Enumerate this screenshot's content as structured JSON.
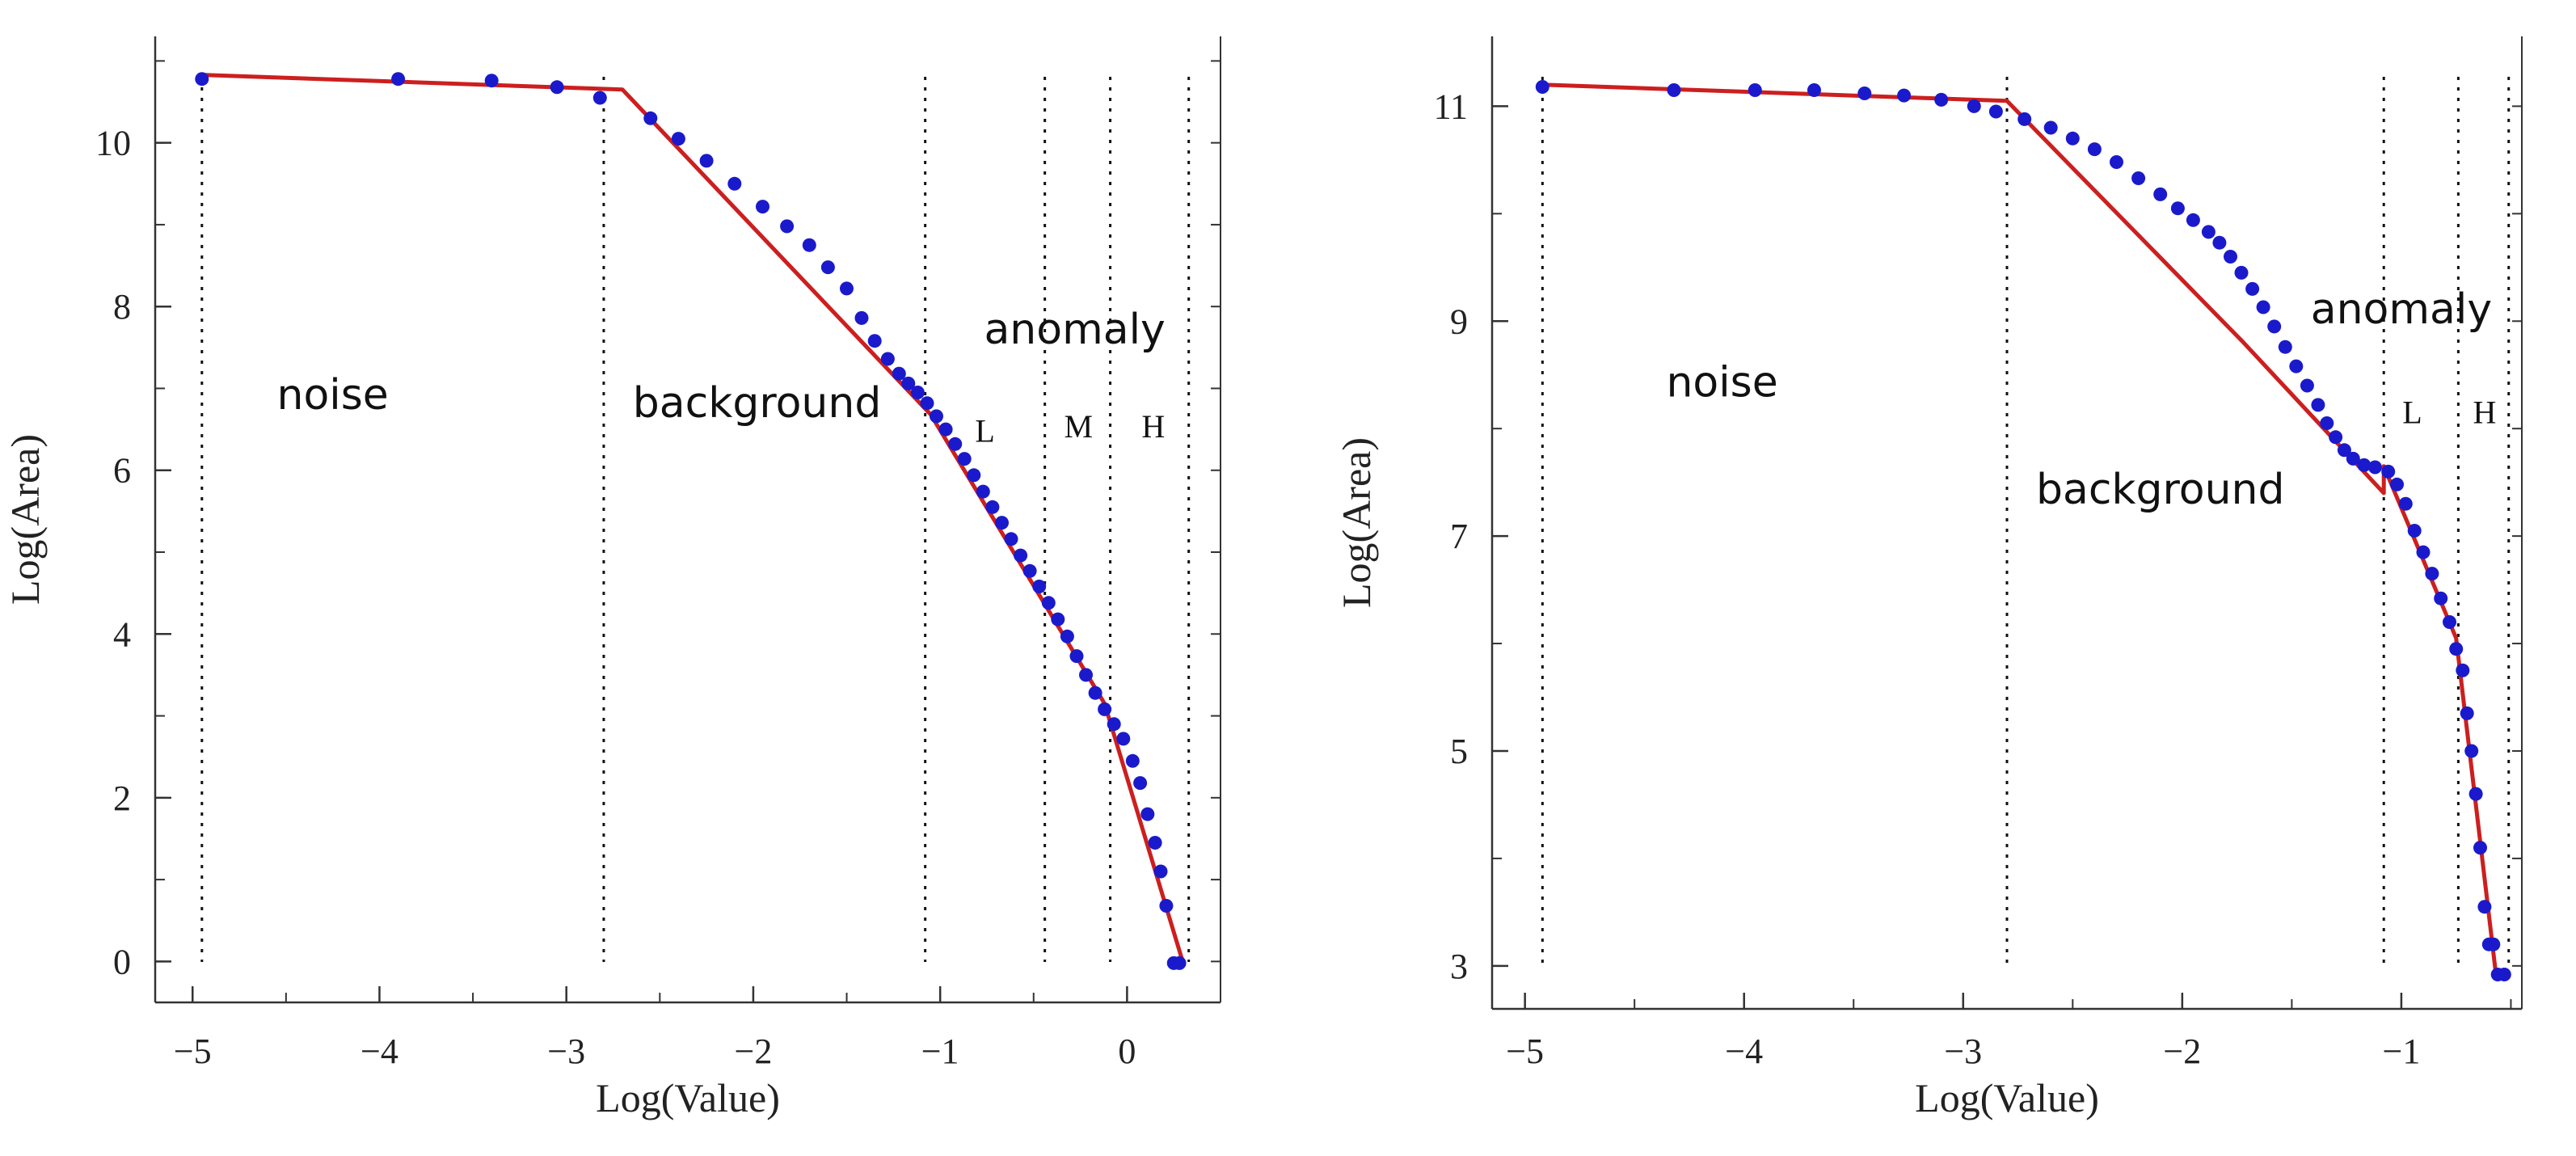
{
  "colors": {
    "points": "#1a1acc",
    "fit_line": "#cc1f1f",
    "axes": "#333333",
    "divider": "#111111",
    "background": "#ffffff"
  },
  "chart_data": [
    {
      "type": "scatter",
      "xlabel": "Log(Value)",
      "ylabel": "Log(Area)",
      "xlim": [
        -5.2,
        0.5
      ],
      "ylim": [
        -0.5,
        11.3
      ],
      "xticks": [
        -5,
        -4,
        -3,
        -2,
        -1,
        0
      ],
      "xtick_labels": [
        "−5",
        "−4",
        "−3",
        "−2",
        "−1",
        "0"
      ],
      "yticks": [
        0,
        2,
        4,
        6,
        8,
        10
      ],
      "ytick_labels": [
        "0",
        "2",
        "4",
        "6",
        "8",
        "10"
      ],
      "dividers": [
        -4.95,
        -2.8,
        -1.08,
        -0.44,
        -0.09,
        0.33
      ],
      "annotations": [
        {
          "text": "noise",
          "x": -4.25,
          "y": 6.75
        },
        {
          "text": "background",
          "x": -1.98,
          "y": 6.65
        },
        {
          "text": "anomaly",
          "x": -0.28,
          "y": 7.55
        },
        {
          "text": "L",
          "x": -0.76,
          "y": 6.35
        },
        {
          "text": "M",
          "x": -0.26,
          "y": 6.4
        },
        {
          "text": "H",
          "x": 0.14,
          "y": 6.4
        }
      ],
      "series": [
        {
          "name": "data points",
          "points": [
            [
              -4.95,
              10.78
            ],
            [
              -3.9,
              10.78
            ],
            [
              -3.4,
              10.76
            ],
            [
              -3.05,
              10.68
            ],
            [
              -2.82,
              10.55
            ],
            [
              -2.55,
              10.3
            ],
            [
              -2.4,
              10.05
            ],
            [
              -2.25,
              9.78
            ],
            [
              -2.1,
              9.5
            ],
            [
              -1.95,
              9.22
            ],
            [
              -1.82,
              8.98
            ],
            [
              -1.7,
              8.75
            ],
            [
              -1.6,
              8.48
            ],
            [
              -1.5,
              8.22
            ],
            [
              -1.42,
              7.86
            ],
            [
              -1.35,
              7.58
            ],
            [
              -1.28,
              7.36
            ],
            [
              -1.22,
              7.18
            ],
            [
              -1.17,
              7.06
            ],
            [
              -1.12,
              6.95
            ],
            [
              -1.07,
              6.82
            ],
            [
              -1.02,
              6.66
            ],
            [
              -0.97,
              6.5
            ],
            [
              -0.92,
              6.32
            ],
            [
              -0.87,
              6.14
            ],
            [
              -0.82,
              5.94
            ],
            [
              -0.77,
              5.74
            ],
            [
              -0.72,
              5.55
            ],
            [
              -0.67,
              5.36
            ],
            [
              -0.62,
              5.16
            ],
            [
              -0.57,
              4.96
            ],
            [
              -0.52,
              4.77
            ],
            [
              -0.47,
              4.58
            ],
            [
              -0.42,
              4.38
            ],
            [
              -0.37,
              4.18
            ],
            [
              -0.32,
              3.97
            ],
            [
              -0.27,
              3.73
            ],
            [
              -0.22,
              3.5
            ],
            [
              -0.17,
              3.28
            ],
            [
              -0.12,
              3.08
            ],
            [
              -0.07,
              2.9
            ],
            [
              -0.02,
              2.72
            ],
            [
              0.03,
              2.45
            ],
            [
              0.07,
              2.18
            ],
            [
              0.11,
              1.8
            ],
            [
              0.15,
              1.45
            ],
            [
              0.18,
              1.1
            ],
            [
              0.21,
              0.68
            ],
            [
              0.25,
              -0.02
            ],
            [
              0.28,
              -0.02
            ]
          ]
        },
        {
          "name": "fit line",
          "points": [
            [
              -4.95,
              10.83
            ],
            [
              -2.7,
              10.65
            ],
            [
              -1.05,
              6.68
            ],
            [
              -0.12,
              3.15
            ],
            [
              0.3,
              -0.02
            ]
          ]
        }
      ]
    },
    {
      "type": "scatter",
      "xlabel": "Log(Value)",
      "ylabel": "Log(Area)",
      "xlim": [
        -5.15,
        -0.45
      ],
      "ylim": [
        2.6,
        11.65
      ],
      "xticks": [
        -5,
        -4,
        -3,
        -2,
        -1
      ],
      "xtick_labels": [
        "−5",
        "−4",
        "−3",
        "−2",
        "−1"
      ],
      "yticks": [
        3,
        5,
        7,
        9,
        11
      ],
      "ytick_labels": [
        "3",
        "5",
        "7",
        "9",
        "11"
      ],
      "dividers": [
        -4.92,
        -2.8,
        -1.08,
        -0.74,
        -0.51
      ],
      "annotations": [
        {
          "text": "noise",
          "x": -4.1,
          "y": 8.3
        },
        {
          "text": "background",
          "x": -2.1,
          "y": 7.3
        },
        {
          "text": "anomaly",
          "x": -1.0,
          "y": 8.98
        },
        {
          "text": "L",
          "x": -0.95,
          "y": 8.05
        },
        {
          "text": "H",
          "x": -0.62,
          "y": 8.05
        }
      ],
      "series": [
        {
          "name": "data points",
          "points": [
            [
              -4.92,
              11.18
            ],
            [
              -4.32,
              11.15
            ],
            [
              -3.95,
              11.15
            ],
            [
              -3.68,
              11.15
            ],
            [
              -3.45,
              11.12
            ],
            [
              -3.27,
              11.1
            ],
            [
              -3.1,
              11.06
            ],
            [
              -2.95,
              11.0
            ],
            [
              -2.85,
              10.95
            ],
            [
              -2.72,
              10.88
            ],
            [
              -2.6,
              10.8
            ],
            [
              -2.5,
              10.7
            ],
            [
              -2.4,
              10.6
            ],
            [
              -2.3,
              10.48
            ],
            [
              -2.2,
              10.33
            ],
            [
              -2.1,
              10.18
            ],
            [
              -2.02,
              10.05
            ],
            [
              -1.95,
              9.94
            ],
            [
              -1.88,
              9.83
            ],
            [
              -1.83,
              9.73
            ],
            [
              -1.78,
              9.6
            ],
            [
              -1.73,
              9.45
            ],
            [
              -1.68,
              9.3
            ],
            [
              -1.63,
              9.13
            ],
            [
              -1.58,
              8.95
            ],
            [
              -1.53,
              8.76
            ],
            [
              -1.48,
              8.58
            ],
            [
              -1.43,
              8.4
            ],
            [
              -1.38,
              8.22
            ],
            [
              -1.34,
              8.05
            ],
            [
              -1.3,
              7.92
            ],
            [
              -1.26,
              7.8
            ],
            [
              -1.22,
              7.72
            ],
            [
              -1.17,
              7.66
            ],
            [
              -1.12,
              7.64
            ],
            [
              -1.06,
              7.6
            ],
            [
              -1.02,
              7.48
            ],
            [
              -0.98,
              7.3
            ],
            [
              -0.94,
              7.05
            ],
            [
              -0.9,
              6.85
            ],
            [
              -0.86,
              6.65
            ],
            [
              -0.82,
              6.42
            ],
            [
              -0.78,
              6.2
            ],
            [
              -0.75,
              5.95
            ],
            [
              -0.72,
              5.75
            ],
            [
              -0.7,
              5.35
            ],
            [
              -0.68,
              5.0
            ],
            [
              -0.66,
              4.6
            ],
            [
              -0.64,
              4.1
            ],
            [
              -0.62,
              3.55
            ],
            [
              -0.6,
              3.2
            ],
            [
              -0.58,
              3.2
            ],
            [
              -0.56,
              2.92
            ],
            [
              -0.53,
              2.92
            ]
          ]
        },
        {
          "name": "fit line",
          "points": [
            [
              -4.92,
              11.2
            ],
            [
              -2.8,
              11.05
            ],
            [
              -1.72,
              8.8
            ],
            [
              -1.08,
              7.4
            ],
            [
              -1.08,
              7.65
            ],
            [
              -0.75,
              6.05
            ],
            [
              -0.57,
              2.95
            ]
          ]
        }
      ]
    }
  ]
}
